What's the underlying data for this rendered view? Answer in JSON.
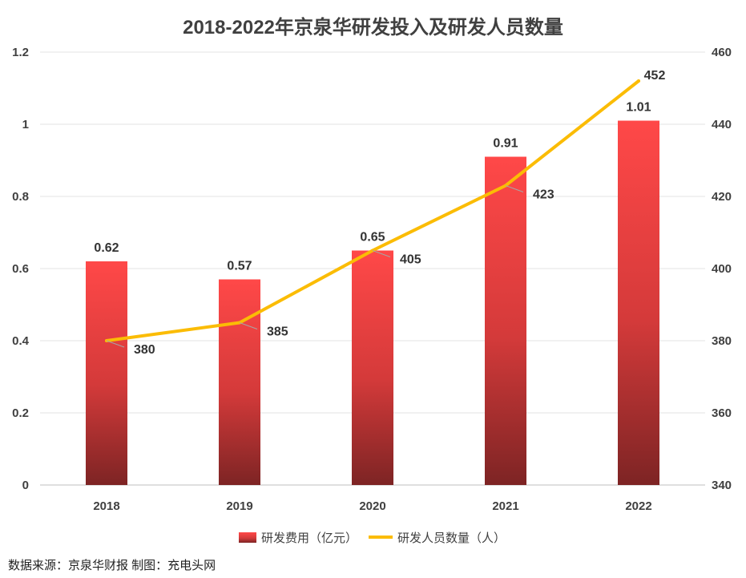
{
  "chart_data": {
    "type": "bar",
    "title": "2018-2022年京泉华研发投入及研发人员数量",
    "categories": [
      "2018",
      "2019",
      "2020",
      "2021",
      "2022"
    ],
    "series": [
      {
        "name": "研发费用（亿元）",
        "type": "bar",
        "axis": "left",
        "values": [
          0.62,
          0.57,
          0.65,
          0.91,
          1.01
        ],
        "labels": [
          "0.62",
          "0.57",
          "0.65",
          "0.91",
          "1.01"
        ],
        "color": "#f84545"
      },
      {
        "name": "研发人员数量（人）",
        "type": "line",
        "axis": "right",
        "values": [
          380,
          385,
          405,
          423,
          452
        ],
        "labels": [
          "380",
          "385",
          "405",
          "423",
          "452"
        ],
        "color": "#fbbc05"
      }
    ],
    "y_left": {
      "min": 0,
      "max": 1.2,
      "ticks": [
        "0",
        "0.2",
        "0.4",
        "0.6",
        "0.8",
        "1",
        "1.2"
      ]
    },
    "y_right": {
      "min": 340,
      "max": 460,
      "ticks": [
        "340",
        "360",
        "380",
        "400",
        "420",
        "440",
        "460"
      ]
    },
    "grid": true,
    "legend_position": "bottom"
  },
  "source": "数据来源：京泉华财报  制图：充电头网"
}
